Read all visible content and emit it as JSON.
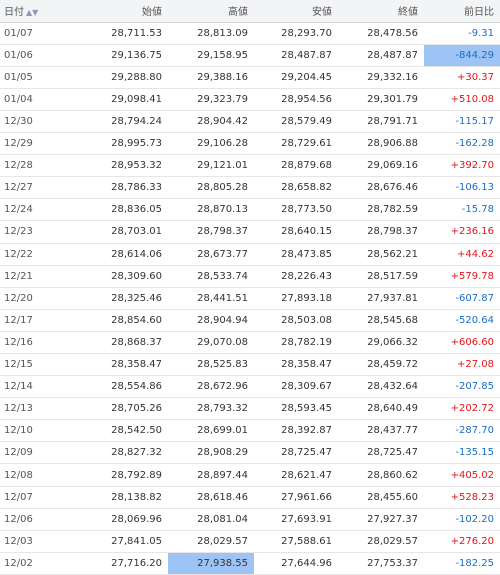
{
  "header": {
    "date": "日付",
    "sort_icons": "▲▼",
    "open": "始値",
    "high": "高値",
    "low": "安値",
    "close": "終値",
    "change": "前日比"
  },
  "colors": {
    "up": "#e0161b",
    "down": "#1a6ec7",
    "highlight": "#9ec4f5"
  },
  "rows": [
    {
      "date": "01/07",
      "open": "28,711.53",
      "high": "28,813.09",
      "low": "28,293.70",
      "close": "28,478.56",
      "change": "-9.31",
      "dir": "down",
      "hl": ""
    },
    {
      "date": "01/06",
      "open": "29,136.75",
      "high": "29,158.95",
      "low": "28,487.87",
      "close": "28,487.87",
      "change": "-844.29",
      "dir": "down",
      "hl": "change"
    },
    {
      "date": "01/05",
      "open": "29,288.80",
      "high": "29,388.16",
      "low": "29,204.45",
      "close": "29,332.16",
      "change": "+30.37",
      "dir": "up",
      "hl": ""
    },
    {
      "date": "01/04",
      "open": "29,098.41",
      "high": "29,323.79",
      "low": "28,954.56",
      "close": "29,301.79",
      "change": "+510.08",
      "dir": "up",
      "hl": ""
    },
    {
      "date": "12/30",
      "open": "28,794.24",
      "high": "28,904.42",
      "low": "28,579.49",
      "close": "28,791.71",
      "change": "-115.17",
      "dir": "down",
      "hl": ""
    },
    {
      "date": "12/29",
      "open": "28,995.73",
      "high": "29,106.28",
      "low": "28,729.61",
      "close": "28,906.88",
      "change": "-162.28",
      "dir": "down",
      "hl": ""
    },
    {
      "date": "12/28",
      "open": "28,953.32",
      "high": "29,121.01",
      "low": "28,879.68",
      "close": "29,069.16",
      "change": "+392.70",
      "dir": "up",
      "hl": ""
    },
    {
      "date": "12/27",
      "open": "28,786.33",
      "high": "28,805.28",
      "low": "28,658.82",
      "close": "28,676.46",
      "change": "-106.13",
      "dir": "down",
      "hl": ""
    },
    {
      "date": "12/24",
      "open": "28,836.05",
      "high": "28,870.13",
      "low": "28,773.50",
      "close": "28,782.59",
      "change": "-15.78",
      "dir": "down",
      "hl": ""
    },
    {
      "date": "12/23",
      "open": "28,703.01",
      "high": "28,798.37",
      "low": "28,640.15",
      "close": "28,798.37",
      "change": "+236.16",
      "dir": "up",
      "hl": ""
    },
    {
      "date": "12/22",
      "open": "28,614.06",
      "high": "28,673.77",
      "low": "28,473.85",
      "close": "28,562.21",
      "change": "+44.62",
      "dir": "up",
      "hl": ""
    },
    {
      "date": "12/21",
      "open": "28,309.60",
      "high": "28,533.74",
      "low": "28,226.43",
      "close": "28,517.59",
      "change": "+579.78",
      "dir": "up",
      "hl": ""
    },
    {
      "date": "12/20",
      "open": "28,325.46",
      "high": "28,441.51",
      "low": "27,893.18",
      "close": "27,937.81",
      "change": "-607.87",
      "dir": "down",
      "hl": ""
    },
    {
      "date": "12/17",
      "open": "28,854.60",
      "high": "28,904.94",
      "low": "28,503.08",
      "close": "28,545.68",
      "change": "-520.64",
      "dir": "down",
      "hl": ""
    },
    {
      "date": "12/16",
      "open": "28,868.37",
      "high": "29,070.08",
      "low": "28,782.19",
      "close": "29,066.32",
      "change": "+606.60",
      "dir": "up",
      "hl": ""
    },
    {
      "date": "12/15",
      "open": "28,358.47",
      "high": "28,525.83",
      "low": "28,358.47",
      "close": "28,459.72",
      "change": "+27.08",
      "dir": "up",
      "hl": ""
    },
    {
      "date": "12/14",
      "open": "28,554.86",
      "high": "28,672.96",
      "low": "28,309.67",
      "close": "28,432.64",
      "change": "-207.85",
      "dir": "down",
      "hl": ""
    },
    {
      "date": "12/13",
      "open": "28,705.26",
      "high": "28,793.32",
      "low": "28,593.45",
      "close": "28,640.49",
      "change": "+202.72",
      "dir": "up",
      "hl": ""
    },
    {
      "date": "12/10",
      "open": "28,542.50",
      "high": "28,699.01",
      "low": "28,392.87",
      "close": "28,437.77",
      "change": "-287.70",
      "dir": "down",
      "hl": ""
    },
    {
      "date": "12/09",
      "open": "28,827.32",
      "high": "28,908.29",
      "low": "28,725.47",
      "close": "28,725.47",
      "change": "-135.15",
      "dir": "down",
      "hl": ""
    },
    {
      "date": "12/08",
      "open": "28,792.89",
      "high": "28,897.44",
      "low": "28,621.47",
      "close": "28,860.62",
      "change": "+405.02",
      "dir": "up",
      "hl": ""
    },
    {
      "date": "12/07",
      "open": "28,138.82",
      "high": "28,618.46",
      "low": "27,961.66",
      "close": "28,455.60",
      "change": "+528.23",
      "dir": "up",
      "hl": ""
    },
    {
      "date": "12/06",
      "open": "28,069.96",
      "high": "28,081.04",
      "low": "27,693.91",
      "close": "27,927.37",
      "change": "-102.20",
      "dir": "down",
      "hl": ""
    },
    {
      "date": "12/03",
      "open": "27,841.05",
      "high": "28,029.57",
      "low": "27,588.61",
      "close": "28,029.57",
      "change": "+276.20",
      "dir": "up",
      "hl": ""
    },
    {
      "date": "12/02",
      "open": "27,716.20",
      "high": "27,938.55",
      "low": "27,644.96",
      "close": "27,753.37",
      "change": "-182.25",
      "dir": "down",
      "hl": "high"
    }
  ]
}
